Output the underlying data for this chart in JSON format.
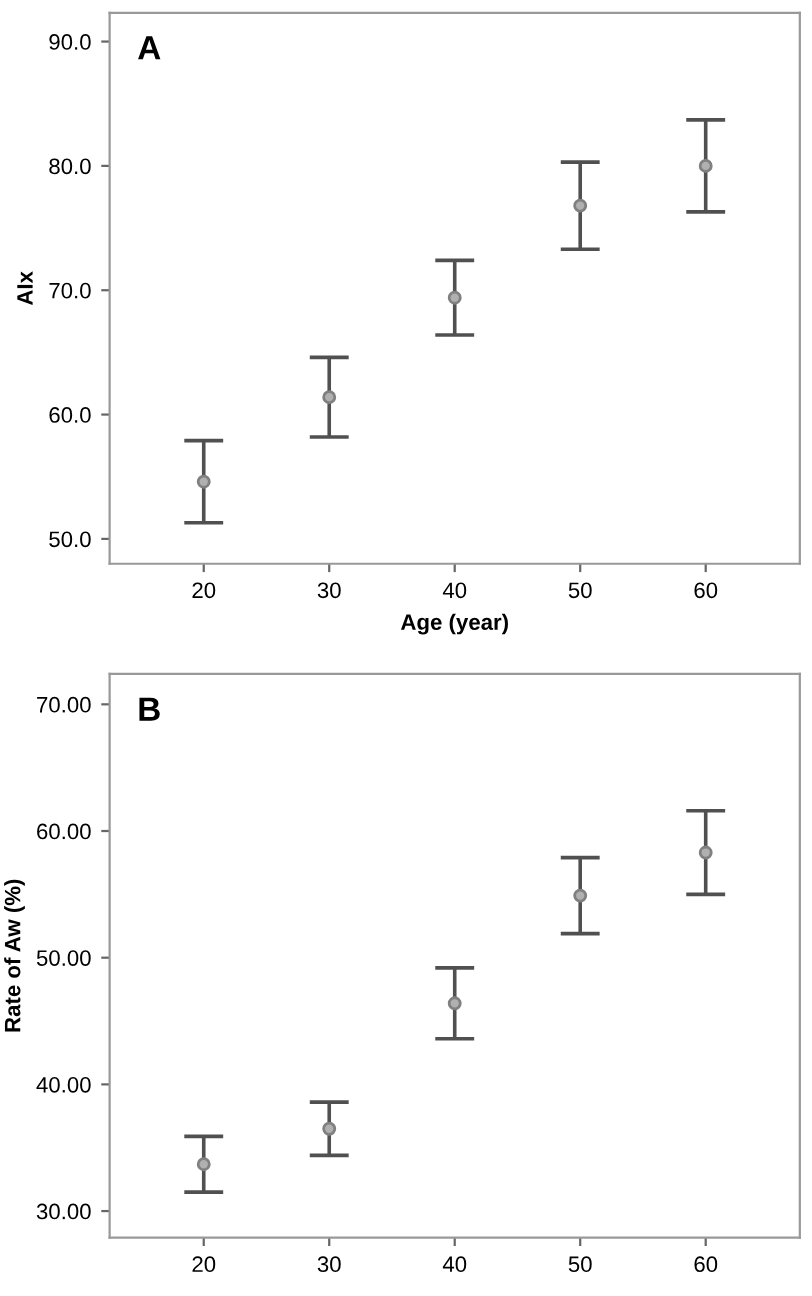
{
  "chart_data": [
    {
      "type": "scatter",
      "annotations": [
        "A"
      ],
      "xlabel": "Age (year)",
      "ylabel": "AIx",
      "x": [
        20,
        30,
        40,
        50,
        60
      ],
      "marker": "circle",
      "grid": false,
      "series": [
        {
          "color": "#808080",
          "values": [
            54.6,
            61.4,
            69.4,
            76.8,
            80.0
          ],
          "errors": [
            3.3,
            3.2,
            3.0,
            3.5,
            3.7
          ]
        }
      ],
      "xlim": [
        12.5,
        67.5
      ],
      "xticks": [
        20,
        30,
        40,
        50,
        60
      ],
      "ylim": [
        48,
        92.3
      ],
      "yticks": [
        {
          "value": 50,
          "label": "50.0"
        },
        {
          "value": 60,
          "label": "60.0"
        },
        {
          "value": 70,
          "label": "70.0"
        },
        {
          "value": 80,
          "label": "80.0"
        },
        {
          "value": 90,
          "label": "90.0"
        }
      ]
    },
    {
      "type": "scatter",
      "annotations": [
        "B"
      ],
      "ylabel": "Rate of Aw (%)",
      "x": [
        20,
        30,
        40,
        50,
        60
      ],
      "marker": "circle",
      "grid": false,
      "series": [
        {
          "color": "#808080",
          "values": [
            33.7,
            36.5,
            46.4,
            54.9,
            58.3
          ],
          "errors": [
            2.2,
            2.1,
            2.8,
            3.0,
            3.3
          ]
        }
      ],
      "xlim": [
        12.5,
        67.5
      ],
      "xticks": [
        20,
        30,
        40,
        50,
        60
      ],
      "ylim": [
        27.9,
        72.4
      ],
      "yticks": [
        {
          "value": 30,
          "label": "30.00"
        },
        {
          "value": 40,
          "label": "40.00"
        },
        {
          "value": 50,
          "label": "50.00"
        },
        {
          "value": 60,
          "label": "60.00"
        },
        {
          "value": 70,
          "label": "70.00"
        }
      ]
    }
  ]
}
